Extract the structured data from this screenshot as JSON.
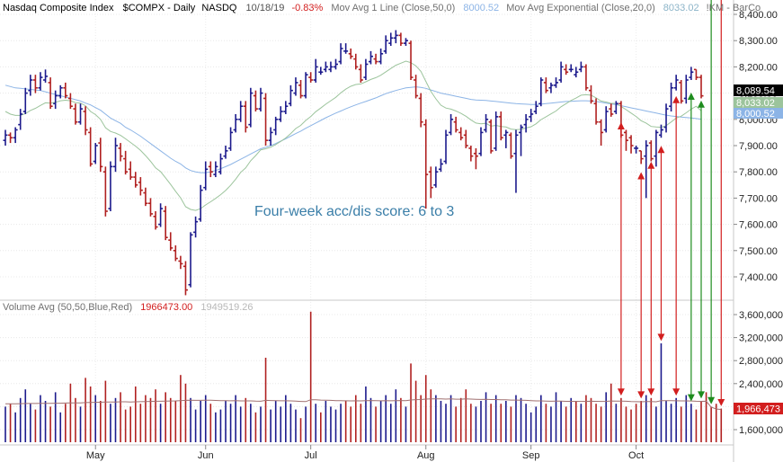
{
  "header": {
    "title": "Nasdaq Composite Index",
    "symbol": "$COMPX",
    "period": "Daily",
    "exchange": "NASDQ",
    "date": "10/18/19",
    "change": "-0.83%",
    "ma1_label": "Mov Avg 1 Line (Close,50,0)",
    "ma1_value": "8000.52",
    "ma2_label": "Mov Avg Exponential (Close,20,0)",
    "ma2_value": "8033.02",
    "extra": "!KM - BarCo"
  },
  "volume_header": {
    "label": "Volume Avg (50,50,Blue,Red)",
    "value1": "1966473.00",
    "value2": "1949519.26"
  },
  "annotation": "Four-week acc/dis score: 6 to 3",
  "price_tags": {
    "last": "8,089.54",
    "ema": "8,033.02",
    "sma": "8,000.52",
    "volume": "1,966,473"
  },
  "colors": {
    "up_bar": "#1c1a8c",
    "down_bar": "#b02020",
    "sma_line": "#8cb4e6",
    "ema_line": "#9cc49c",
    "vol_avg": "#a07070",
    "annotation": "#3a7ea8",
    "distribution_arrow": "#d21e1e",
    "accumulation_arrow": "#1e8c1e"
  },
  "chart_data": [
    {
      "type": "ohlc",
      "title": "Nasdaq Composite Index $COMPX - Daily",
      "y_ticks": [
        7400,
        7500,
        7600,
        7700,
        7800,
        7900,
        8000,
        8100,
        8200,
        8300,
        8400
      ],
      "y_tick_labels": [
        "7,400.00",
        "7,500.00",
        "7,600.00",
        "7,700.00",
        "7,800.00",
        "7,900.00",
        "8,000.00",
        "8,100.00",
        "8,200.00",
        "8,300.00",
        "8,400.00"
      ],
      "x_month_labels": [
        "May",
        "Jun",
        "Jul",
        "Aug",
        "Sep",
        "Oct"
      ],
      "x_month_start_index": [
        18,
        40,
        61,
        84,
        105,
        126
      ],
      "closes": [
        7940,
        7930,
        7960,
        8020,
        8100,
        8150,
        8120,
        8160,
        8164,
        8050,
        8090,
        8120,
        8090,
        8050,
        7990,
        8040,
        7960,
        7830,
        7900,
        7820,
        7650,
        7820,
        7900,
        7860,
        7800,
        7780,
        7750,
        7730,
        7680,
        7640,
        7590,
        7660,
        7550,
        7510,
        7470,
        7450,
        7350,
        7560,
        7610,
        7730,
        7810,
        7800,
        7820,
        7850,
        7880,
        7950,
        8000,
        8050,
        7970,
        8100,
        8040,
        8100,
        7920,
        7950,
        8000,
        8030,
        8050,
        8110,
        8140,
        8090,
        8170,
        8150,
        8200,
        8180,
        8200,
        8200,
        8210,
        8270,
        8260,
        8240,
        8200,
        8150,
        8210,
        8240,
        8220,
        8250,
        8300,
        8310,
        8320,
        8290,
        8300,
        8160,
        8090,
        7990,
        7790,
        7740,
        7800,
        7830,
        7940,
        8000,
        7960,
        7930,
        7900,
        7860,
        7860,
        7950,
        8000,
        7880,
        8010,
        7930,
        7950,
        7860,
        7940,
        7970,
        8000,
        8020,
        8050,
        8150,
        8110,
        8130,
        8140,
        8200,
        8180,
        8190,
        8180,
        8200,
        8120,
        8070,
        7990,
        7950,
        8030,
        8020,
        8060,
        7940,
        7920,
        7900,
        7890,
        7850,
        7900,
        7850,
        7950,
        7960,
        8040,
        8120,
        8150,
        8070,
        8150,
        8180,
        8160,
        8089.54
      ],
      "opens": [
        7920,
        7940,
        7930,
        7980,
        8030,
        8110,
        8150,
        8120,
        8150,
        8140,
        8060,
        8090,
        8120,
        8080,
        8040,
        7990,
        8030,
        7950,
        7840,
        7910,
        7800,
        7660,
        7820,
        7890,
        7850,
        7810,
        7780,
        7760,
        7720,
        7680,
        7630,
        7600,
        7650,
        7540,
        7500,
        7460,
        7440,
        7370,
        7570,
        7620,
        7740,
        7820,
        7790,
        7800,
        7860,
        7890,
        7960,
        8000,
        8050,
        7980,
        8090,
        8040,
        8080,
        7920,
        7960,
        8000,
        8030,
        8060,
        8100,
        8130,
        8090,
        8160,
        8150,
        8180,
        8190,
        8190,
        8200,
        8220,
        8260,
        8250,
        8230,
        8190,
        8160,
        8220,
        8230,
        8220,
        8260,
        8290,
        8310,
        8320,
        8290,
        8290,
        8150,
        8080,
        7980,
        7800,
        7750,
        7810,
        7840,
        7950,
        7990,
        7950,
        7940,
        7890,
        7870,
        7870,
        7960,
        7990,
        7890,
        8010,
        7940,
        7940,
        7870,
        7950,
        7980,
        8010,
        8030,
        8060,
        8140,
        8120,
        8130,
        8150,
        8190,
        8190,
        8170,
        8190,
        8200,
        8110,
        8060,
        7990,
        7960,
        8040,
        8030,
        8060,
        7950,
        7930,
        7890,
        7880,
        7860,
        7910,
        7860,
        7940,
        7970,
        8050,
        8120,
        8140,
        8080,
        8160,
        8190,
        8160
      ],
      "highs": [
        7960,
        7950,
        7970,
        8040,
        8120,
        8170,
        8170,
        8180,
        8190,
        8160,
        8110,
        8130,
        8140,
        8100,
        8060,
        8060,
        8050,
        7970,
        7910,
        7930,
        7820,
        7840,
        7930,
        7910,
        7880,
        7840,
        7800,
        7780,
        7740,
        7700,
        7650,
        7680,
        7670,
        7570,
        7520,
        7480,
        7460,
        7570,
        7630,
        7750,
        7840,
        7840,
        7840,
        7870,
        7900,
        7970,
        8020,
        8070,
        8070,
        8120,
        8110,
        8120,
        8100,
        7970,
        8010,
        8050,
        8070,
        8130,
        8160,
        8150,
        8180,
        8180,
        8230,
        8200,
        8220,
        8220,
        8230,
        8290,
        8290,
        8270,
        8250,
        8210,
        8230,
        8260,
        8250,
        8270,
        8320,
        8330,
        8340,
        8330,
        8310,
        8300,
        8170,
        8100,
        8000,
        7820,
        7820,
        7850,
        7960,
        8020,
        8010,
        7970,
        7960,
        7900,
        7890,
        7970,
        8020,
        8000,
        8030,
        8030,
        7960,
        7950,
        7960,
        7980,
        8020,
        8040,
        8070,
        8160,
        8160,
        8140,
        8160,
        8220,
        8210,
        8210,
        8200,
        8220,
        8210,
        8130,
        8080,
        8000,
        8050,
        8060,
        8070,
        8070,
        7960,
        7940,
        7900,
        7880,
        7920,
        7920,
        7960,
        7980,
        8060,
        8140,
        8170,
        8150,
        8170,
        8200,
        8190,
        8170
      ],
      "lows": [
        7900,
        7910,
        7910,
        7960,
        8020,
        8090,
        8100,
        8110,
        8140,
        8040,
        8040,
        8080,
        8080,
        8040,
        7980,
        7980,
        7940,
        7820,
        7830,
        7800,
        7630,
        7650,
        7800,
        7840,
        7790,
        7770,
        7740,
        7710,
        7670,
        7630,
        7580,
        7590,
        7540,
        7500,
        7460,
        7430,
        7330,
        7360,
        7550,
        7610,
        7730,
        7780,
        7780,
        7790,
        7850,
        7880,
        7950,
        7990,
        7950,
        7970,
        8030,
        8030,
        7900,
        7900,
        7940,
        7990,
        8020,
        8050,
        8090,
        8080,
        8080,
        8140,
        8140,
        8170,
        8180,
        8180,
        8190,
        8210,
        8250,
        8230,
        8190,
        8140,
        8150,
        8210,
        8210,
        8210,
        8250,
        8280,
        8290,
        8280,
        8280,
        8150,
        8080,
        7970,
        7660,
        7700,
        7740,
        7800,
        7830,
        7940,
        7950,
        7920,
        7890,
        7840,
        7810,
        7860,
        7950,
        7870,
        7880,
        7920,
        7890,
        7850,
        7720,
        7860,
        7950,
        7990,
        8020,
        8050,
        8100,
        8100,
        8120,
        8140,
        8170,
        8180,
        8160,
        8180,
        8110,
        8060,
        7980,
        7900,
        7950,
        8010,
        8020,
        7930,
        7880,
        7870,
        7870,
        7830,
        7700,
        7840,
        7820,
        7930,
        7950,
        8030,
        8110,
        8060,
        8060,
        8150,
        8150,
        8080
      ],
      "sma_50": [
        8130,
        8125,
        8120,
        8118,
        8116,
        8114,
        8112,
        8110,
        8105,
        8100,
        8095,
        8090,
        8085,
        8080,
        8075,
        8070,
        8062,
        8055,
        8045,
        8035,
        8020,
        8005,
        7995,
        7985,
        7970,
        7960,
        7948,
        7936,
        7922,
        7908,
        7894,
        7880,
        7866,
        7852,
        7840,
        7830,
        7815,
        7805,
        7800,
        7797,
        7797,
        7800,
        7805,
        7812,
        7820,
        7828,
        7838,
        7848,
        7858,
        7868,
        7878,
        7888,
        7894,
        7900,
        7908,
        7917,
        7926,
        7936,
        7946,
        7955,
        7966,
        7976,
        7986,
        7996,
        8006,
        8015,
        8024,
        8032,
        8040,
        8048,
        8055,
        8062,
        8068,
        8075,
        8082,
        8090,
        8098,
        8104,
        8110,
        8115,
        8120,
        8122,
        8124,
        8122,
        8118,
        8112,
        8106,
        8100,
        8096,
        8092,
        8088,
        8084,
        8080,
        8076,
        8074,
        8073,
        8072,
        8070,
        8068,
        8066,
        8064,
        8062,
        8060,
        8059,
        8058,
        8057,
        8057,
        8058,
        8060,
        8062,
        8064,
        8066,
        8068,
        8069,
        8070,
        8071,
        8071,
        8070,
        8068,
        8065,
        8062,
        8059,
        8056,
        8052,
        8048,
        8044,
        8040,
        8036,
        8032,
        8028,
        8024,
        8020,
        8016,
        8013,
        8011,
        8009,
        8007,
        8005,
        8003,
        8000.52
      ],
      "ema_20": [
        8030,
        8020,
        8015,
        8015,
        8022,
        8034,
        8042,
        8053,
        8063,
        8062,
        8065,
        8071,
        8073,
        8071,
        8064,
        8062,
        8052,
        8030,
        8018,
        8000,
        7968,
        7954,
        7948,
        7939,
        7926,
        7912,
        7898,
        7882,
        7862,
        7840,
        7815,
        7801,
        7777,
        7752,
        7726,
        7701,
        7667,
        7657,
        7653,
        7660,
        7674,
        7686,
        7699,
        7713,
        7729,
        7749,
        7772,
        7798,
        7815,
        7842,
        7862,
        7884,
        7888,
        7894,
        7904,
        7916,
        7929,
        7946,
        7965,
        7977,
        7996,
        8011,
        8029,
        8043,
        8058,
        8071,
        8084,
        8101,
        8115,
        8126,
        8133,
        8135,
        8143,
        8152,
        8159,
        8168,
        8181,
        8194,
        8206,
        8214,
        8222,
        8216,
        8204,
        8183,
        8145,
        8107,
        8078,
        8054,
        8043,
        8039,
        8032,
        8023,
        8012,
        7998,
        7986,
        7983,
        7985,
        7974,
        7977,
        7973,
        7971,
        7963,
        7961,
        7962,
        7967,
        7972,
        7983,
        7999,
        8010,
        8021,
        8032,
        8048,
        8060,
        8072,
        8081,
        8092,
        8094,
        8092,
        8082,
        8070,
        8066,
        8061,
        8061,
        8049,
        8037,
        8024,
        8011,
        7995,
        7986,
        7973,
        7971,
        7970,
        7976,
        7990,
        8005,
        8012,
        8025,
        8039,
        8050,
        8033.02
      ]
    },
    {
      "type": "bar",
      "title": "Volume Avg (50,50,Blue,Red)",
      "y_ticks": [
        1600000,
        2000000,
        2400000,
        2800000,
        3200000,
        3600000
      ],
      "y_tick_labels": [
        "1,600,000",
        "2,000,000",
        "2,400,000",
        "2,800,000",
        "3,200,000",
        "3,600,000"
      ],
      "values": [
        2000000,
        2050000,
        1900000,
        2150000,
        2300000,
        2050000,
        1950000,
        2200000,
        2100000,
        2000000,
        2250000,
        1900000,
        2050000,
        2400000,
        2150000,
        2000000,
        2500000,
        2350000,
        2200000,
        2100000,
        2450000,
        2050000,
        2150000,
        2250000,
        1950000,
        2000000,
        2350000,
        2050000,
        2200000,
        2150000,
        2300000,
        2050000,
        2250000,
        2150000,
        2100000,
        2550000,
        2400000,
        2150000,
        1950000,
        2100000,
        2200000,
        2050000,
        1900000,
        1950000,
        2100000,
        2050000,
        2200000,
        2000000,
        2150000,
        2050000,
        1900000,
        2000000,
        2850000,
        1950000,
        2100000,
        2000000,
        2200000,
        2050000,
        1950000,
        1800000,
        2000000,
        3650000,
        2050000,
        1900000,
        2100000,
        2000000,
        1950000,
        2050000,
        2100000,
        2000000,
        2200000,
        2050000,
        2350000,
        2150000,
        2000000,
        2100000,
        2200000,
        2050000,
        2300000,
        2150000,
        2000000,
        2750000,
        2450000,
        2200000,
        2550000,
        2300000,
        2200000,
        2100000,
        2050000,
        2200000,
        2000000,
        2150000,
        2300000,
        2050000,
        2000000,
        2100000,
        2250000,
        2050000,
        2200000,
        2050000,
        2100000,
        2000000,
        2200000,
        2150000,
        2050000,
        1900000,
        2000000,
        2200000,
        2050000,
        2000000,
        2250000,
        2100000,
        2000000,
        2150000,
        2100000,
        2050000,
        2200000,
        2150000,
        2050000,
        2000000,
        2250000,
        2400000,
        2050000,
        2150000,
        2000000,
        1950000,
        2050000,
        2100000,
        2200000,
        2150000,
        2000000,
        3100000,
        2100000,
        2050000,
        2150000,
        2000000,
        2200000,
        2050000,
        1950000,
        2100000,
        2250000,
        2000000,
        2050000,
        1966473
      ],
      "avg": [
        2050000,
        2050000,
        2050000,
        2052000,
        2054000,
        2055000,
        2055000,
        2056000,
        2057000,
        2058000,
        2060000,
        2060000,
        2062000,
        2065000,
        2066000,
        2066000,
        2070000,
        2073000,
        2075000,
        2076000,
        2080000,
        2080000,
        2082000,
        2085000,
        2084000,
        2082000,
        2085000,
        2086000,
        2088000,
        2090000,
        2093000,
        2094000,
        2096000,
        2098000,
        2100000,
        2105000,
        2110000,
        2112000,
        2110000,
        2110000,
        2112000,
        2112000,
        2108000,
        2104000,
        2103000,
        2102000,
        2103000,
        2100000,
        2100000,
        2100000,
        2096000,
        2094000,
        2110000,
        2106000,
        2104000,
        2102000,
        2102000,
        2100000,
        2096000,
        2090000,
        2088000,
        2120000,
        2118000,
        2114000,
        2112000,
        2110000,
        2105000,
        2103000,
        2102000,
        2100000,
        2102000,
        2100000,
        2105000,
        2106000,
        2103000,
        2102000,
        2104000,
        2102000,
        2105000,
        2106000,
        2103000,
        2116000,
        2122000,
        2124000,
        2132000,
        2134000,
        2136000,
        2135000,
        2132000,
        2134000,
        2130000,
        2130000,
        2134000,
        2132000,
        2128000,
        2125000,
        2126000,
        2124000,
        2124000,
        2120000,
        2118000,
        2114000,
        2114000,
        2113000,
        2110000,
        2104000,
        2100000,
        2100000,
        2097000,
        2094000,
        2096000,
        2095000,
        2092000,
        2092000,
        2092000,
        2090000,
        2092000,
        2093000,
        2092000,
        2090000,
        2092000,
        2098000,
        2096000,
        2096000,
        2093000,
        2088000,
        2086000,
        2085000,
        2087000,
        2088000,
        2084000,
        2104000,
        2104000,
        2103000,
        2102000,
        2100000,
        2100000,
        2098000,
        2093000,
        2092000,
        2094000,
        1990000,
        1960000,
        1949519
      ]
    }
  ],
  "distribution_days": [
    123,
    127,
    129,
    131,
    134,
    143
  ],
  "accumulation_days": [
    137,
    139,
    141
  ]
}
